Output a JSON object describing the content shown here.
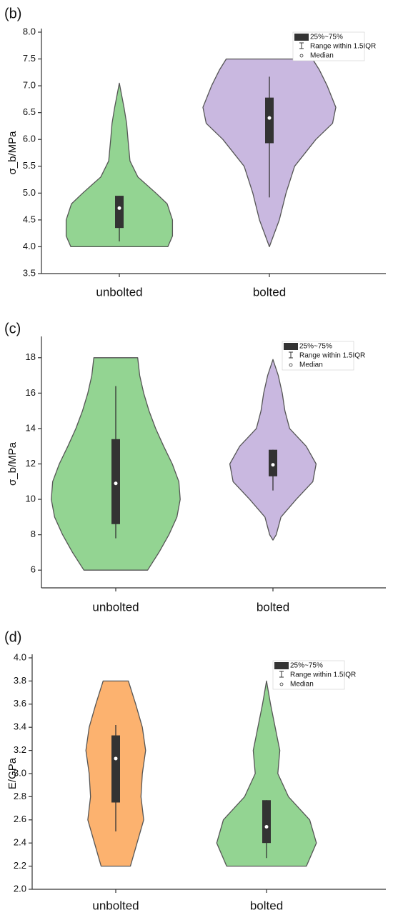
{
  "chart_data": [
    {
      "type": "violin",
      "panel_label": "(b)",
      "y_label": "σ_b/MPa",
      "categories": [
        "unbolted",
        "bolted"
      ],
      "ylim": [
        3.5,
        8.0
      ],
      "yticks": [
        {
          "value": 3.5,
          "label": "3.5"
        },
        {
          "value": 4,
          "label": "4.0"
        },
        {
          "value": 4.5,
          "label": "4.5"
        },
        {
          "value": 5,
          "label": "5.0"
        },
        {
          "value": 5.5,
          "label": "5.5"
        },
        {
          "value": 6,
          "label": "6.0"
        },
        {
          "value": 6.5,
          "label": "6.5"
        },
        {
          "value": 7,
          "label": "7.0"
        },
        {
          "value": 7.5,
          "label": "7.5"
        },
        {
          "value": 8,
          "label": "8.0"
        }
      ],
      "legend": [
        "25%~75%",
        "Range within 1.5IQR",
        "Median"
      ],
      "violins": [
        {
          "color": "#93d492",
          "levels": [
            4.0,
            4.2,
            4.5,
            4.8,
            5.0,
            5.3,
            5.6,
            6.0,
            6.3,
            6.6,
            7.05
          ],
          "widths": [
            0.73,
            0.8,
            0.8,
            0.72,
            0.55,
            0.28,
            0.16,
            0.13,
            0.11,
            0.07,
            0
          ],
          "q1": 4.35,
          "q3": 4.95,
          "median": 4.72,
          "whisker_low": 4.1,
          "whisker_high": 4.95
        },
        {
          "color": "#c9b8e0",
          "levels": [
            4.0,
            4.5,
            5.0,
            5.5,
            6.0,
            6.3,
            6.6,
            7.0,
            7.3,
            7.5
          ],
          "widths": [
            0,
            0.15,
            0.25,
            0.38,
            0.7,
            0.95,
            1,
            0.87,
            0.75,
            0.65
          ],
          "q1": 5.93,
          "q3": 6.78,
          "median": 6.4,
          "whisker_low": 4.92,
          "whisker_high": 7.17
        }
      ]
    },
    {
      "type": "violin",
      "panel_label": "(c)",
      "y_label": "σ_b/MPa",
      "categories": [
        "unbolted",
        "bolted"
      ],
      "ylim": [
        5,
        19
      ],
      "yticks": [
        6,
        8,
        10,
        12,
        14,
        16,
        18
      ],
      "legend": [
        "25%~75%",
        "Range within 1.5IQR",
        "Median"
      ],
      "violins": [
        {
          "color": "#93d492",
          "levels": [
            6,
            7,
            8,
            9,
            10,
            11,
            12,
            13,
            14,
            15,
            16,
            17,
            18
          ],
          "widths": [
            0.48,
            0.65,
            0.8,
            0.92,
            0.97,
            0.95,
            0.85,
            0.72,
            0.6,
            0.5,
            0.42,
            0.36,
            0.33
          ],
          "q1": 8.6,
          "q3": 13.4,
          "median": 10.9,
          "whisker_low": 7.8,
          "whisker_high": 16.4
        },
        {
          "color": "#c9b8e0",
          "levels": [
            7.7,
            8,
            9,
            10,
            11,
            12,
            13,
            14,
            15,
            16,
            17,
            17.9
          ],
          "widths": [
            0,
            0.05,
            0.12,
            0.35,
            0.6,
            0.65,
            0.5,
            0.25,
            0.18,
            0.14,
            0.08,
            0
          ],
          "q1": 11.3,
          "q3": 12.8,
          "median": 11.95,
          "whisker_low": 10.5,
          "whisker_high": 12.8
        }
      ]
    },
    {
      "type": "violin",
      "panel_label": "(d)",
      "y_label": "E/GPa",
      "categories": [
        "unbolted",
        "bolted"
      ],
      "ylim": [
        2,
        4
      ],
      "yticks": [
        {
          "value": 2,
          "label": "2.0"
        },
        {
          "value": 2.2,
          "label": "2.2"
        },
        {
          "value": 2.4,
          "label": "2.4"
        },
        {
          "value": 2.6,
          "label": "2.6"
        },
        {
          "value": 2.8,
          "label": "2.8"
        },
        {
          "value": 3,
          "label": "3.0"
        },
        {
          "value": 3.2,
          "label": "3.2"
        },
        {
          "value": 3.4,
          "label": "3.4"
        },
        {
          "value": 3.6,
          "label": "3.6"
        },
        {
          "value": 3.8,
          "label": "3.8"
        },
        {
          "value": 4,
          "label": "4.0"
        }
      ],
      "legend": [
        "25%~75%",
        "Range within 1.5IQR",
        "Median"
      ],
      "violins": [
        {
          "color": "#fcb26f",
          "levels": [
            2.2,
            2.4,
            2.6,
            2.8,
            3.0,
            3.2,
            3.4,
            3.6,
            3.8
          ],
          "widths": [
            0.22,
            0.32,
            0.42,
            0.38,
            0.4,
            0.45,
            0.4,
            0.3,
            0.19
          ],
          "q1": 2.75,
          "q3": 3.33,
          "median": 3.13,
          "whisker_low": 2.5,
          "whisker_high": 3.42
        },
        {
          "color": "#93d492",
          "levels": [
            2.2,
            2.4,
            2.6,
            2.8,
            3.0,
            3.2,
            3.4,
            3.6,
            3.8
          ],
          "widths": [
            0.6,
            0.75,
            0.65,
            0.33,
            0.17,
            0.2,
            0.13,
            0.06,
            0
          ],
          "q1": 2.4,
          "q3": 2.77,
          "median": 2.54,
          "whisker_low": 2.27,
          "whisker_high": 2.77
        }
      ]
    }
  ]
}
